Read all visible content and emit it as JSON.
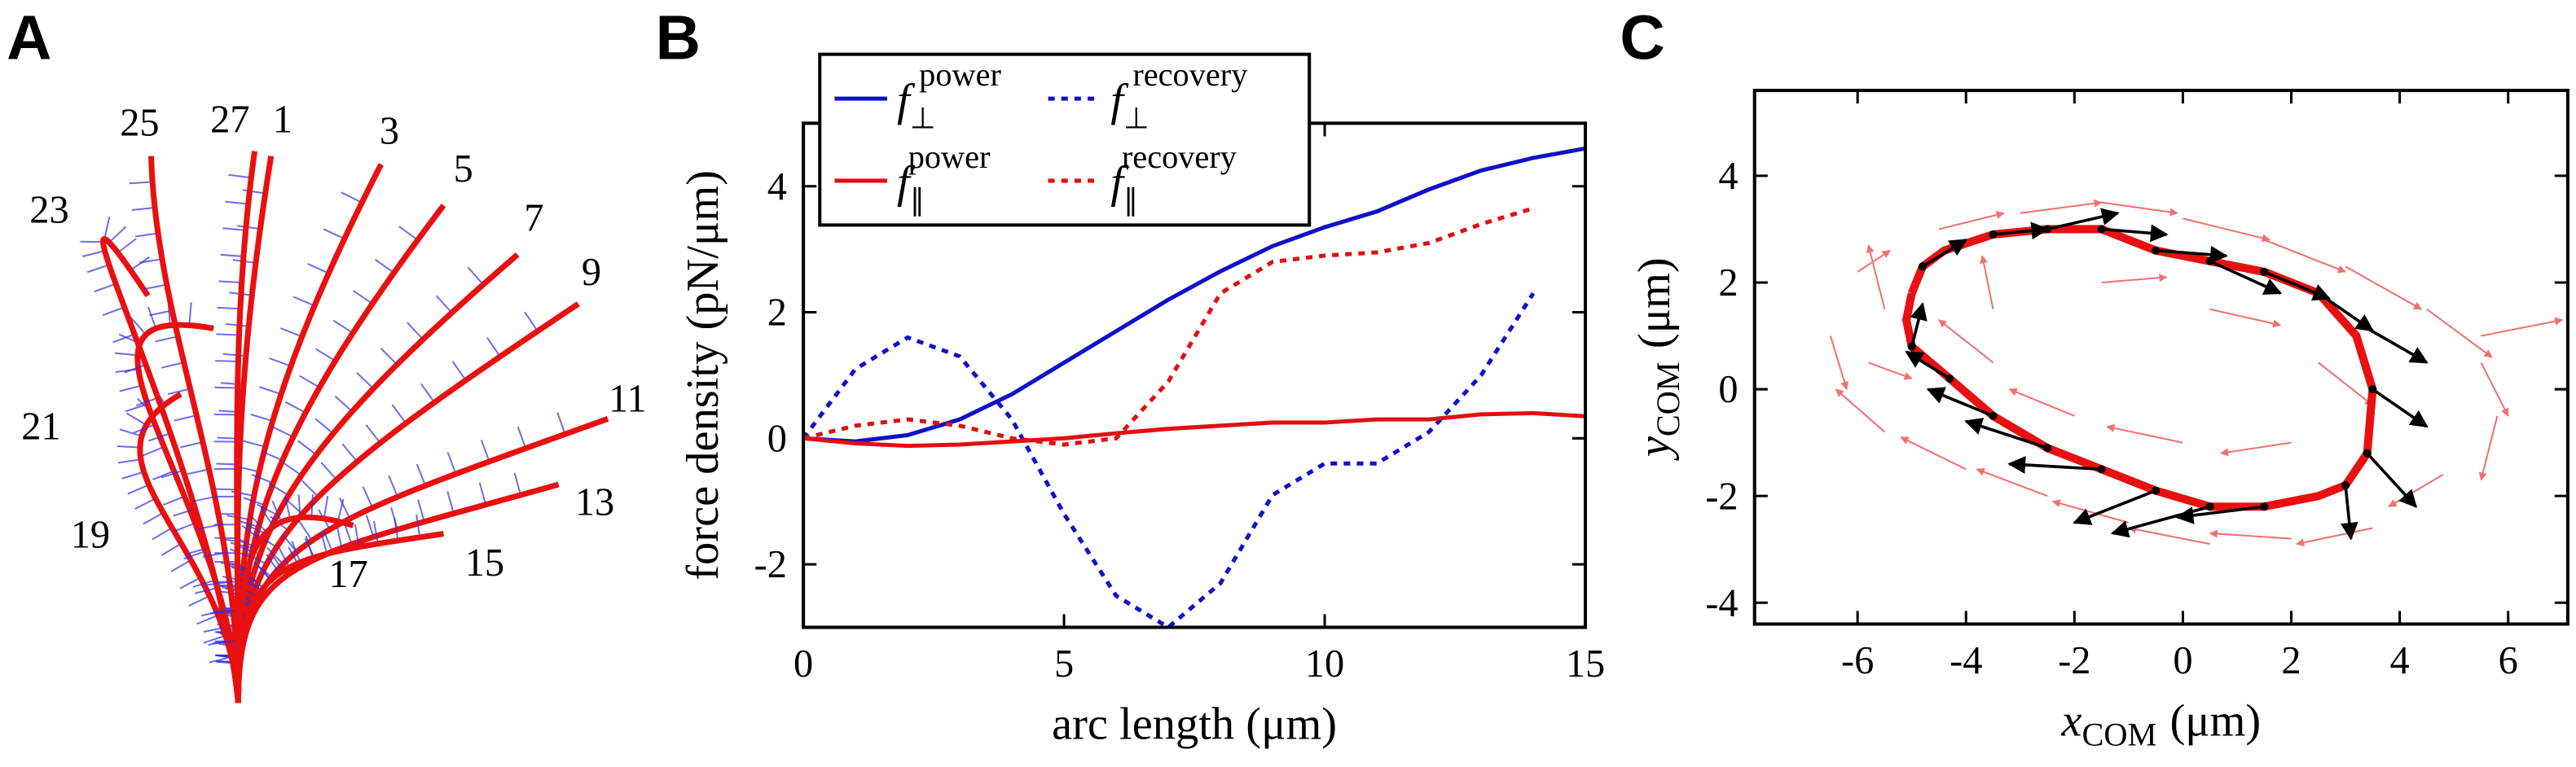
{
  "panel_a": {
    "letter": "A",
    "beat_labels": [
      "1",
      "3",
      "5",
      "7",
      "9",
      "11",
      "13",
      "15",
      "17",
      "19",
      "21",
      "23",
      "25",
      "27"
    ]
  },
  "chart_data": [
    {
      "type": "line",
      "letter": "B",
      "xlabel": "arc length (μm)",
      "ylabel": "force density (pN/μm)",
      "x": [
        0,
        1,
        2,
        3,
        4,
        5,
        6,
        7,
        8,
        9,
        10,
        11,
        12,
        13,
        14,
        15
      ],
      "series": [
        {
          "name": "f",
          "sub": "⊥",
          "sup": "power",
          "color": "#1010c8",
          "dash": "solid",
          "values": [
            0,
            -0.05,
            0.05,
            0.3,
            0.7,
            1.2,
            1.7,
            2.2,
            2.65,
            3.05,
            3.35,
            3.6,
            3.95,
            4.25,
            4.45,
            4.6
          ]
        },
        {
          "name": "f",
          "sub": "⊥",
          "sup": "recovery",
          "color": "#1010c8",
          "dash": "dotted",
          "values": [
            0,
            1.1,
            1.6,
            1.3,
            0.3,
            -1.2,
            -2.5,
            -3,
            -2.3,
            -0.9,
            -0.4,
            -0.4,
            0.1,
            1.0,
            2.3,
            null
          ]
        },
        {
          "name": "f",
          "sub": "∥",
          "sup": "power",
          "color": "#e01010",
          "dash": "solid",
          "values": [
            0,
            -0.08,
            -0.12,
            -0.1,
            -0.05,
            0,
            0.08,
            0.15,
            0.2,
            0.25,
            0.25,
            0.3,
            0.3,
            0.38,
            0.4,
            0.35
          ]
        },
        {
          "name": "f",
          "sub": "∥",
          "sup": "recovery",
          "color": "#e01010",
          "dash": "dotted",
          "values": [
            0,
            0.2,
            0.3,
            0.2,
            0,
            -0.1,
            0,
            0.9,
            2.3,
            2.8,
            2.9,
            2.95,
            3.1,
            3.4,
            3.65,
            null
          ]
        }
      ],
      "xlim": [
        0,
        15
      ],
      "xticks": [
        0,
        5,
        10,
        15
      ],
      "ylim": [
        -3,
        5
      ],
      "yticks": [
        -2,
        0,
        2,
        4
      ]
    },
    {
      "type": "quiver",
      "letter": "C",
      "xlabel": "x",
      "xlabel_sub": "COM",
      "xlabel_unit": "(μm)",
      "ylabel": "y",
      "ylabel_sub": "COM",
      "ylabel_unit": "(μm)",
      "xlim": [
        -7.9,
        7.1
      ],
      "xticks": [
        -6,
        -4,
        -2,
        0,
        2,
        4,
        6
      ],
      "ylim": [
        -4.4,
        5.6
      ],
      "yticks": [
        -4,
        -2,
        0,
        2,
        4
      ],
      "arrows": [
        {
          "color": "#f07070",
          "x": [
            -5.5,
            -6,
            -5.8,
            -4.5,
            -3,
            -1.5,
            0,
            1.5,
            3,
            4.5,
            5.5,
            5.8,
            4.8,
            3.5,
            2,
            0.5,
            -1,
            -2.5,
            -4,
            -5.5,
            -3.5,
            -2,
            0,
            2,
            2.5,
            0.5,
            -1.5,
            -3.5,
            5.5,
            -6.5
          ],
          "y": [
            1.5,
            2.2,
            0.5,
            3.0,
            3.3,
            3.5,
            3.2,
            2.8,
            2.3,
            1.5,
            0.5,
            -0.5,
            -1.6,
            -2.6,
            -2.8,
            -2.9,
            -2.5,
            -2.0,
            -1.5,
            -0.8,
            0.5,
            -0.5,
            -1.0,
            -1.0,
            0.5,
            1.5,
            2.0,
            1.5,
            1.0,
            1.0
          ],
          "u": [
            -0.3,
            0.6,
            0.8,
            1.2,
            1.5,
            1.4,
            1.6,
            1.5,
            1.4,
            1.2,
            0.5,
            -0.3,
            -1.0,
            -1.4,
            -1.5,
            -1.5,
            -1.4,
            -1.3,
            -1.2,
            -0.9,
            -1.0,
            -1.2,
            -1.4,
            -1.3,
            1.0,
            1.3,
            1.2,
            -0.2,
            1.5,
            0.3
          ],
          "v": [
            1.2,
            0.4,
            -0.3,
            0.3,
            0.2,
            -0.2,
            -0.4,
            -0.6,
            -0.8,
            -0.9,
            -1.0,
            -1.2,
            -0.6,
            -0.3,
            0.1,
            0.3,
            0.4,
            0.5,
            0.6,
            0.8,
            0.8,
            0.5,
            0.3,
            -0.2,
            -0.8,
            -0.3,
            0.1,
            1.0,
            0.3,
            -1.0
          ]
        },
        {
          "color": "#000000",
          "x": [
            -4.8,
            -3.5,
            -2.5,
            -1.5,
            -0.5,
            0.5,
            1.5,
            2.5,
            3.3,
            3.5,
            3.4,
            3.0,
            1.5,
            0.5,
            -0.5,
            -1.5,
            -2.5,
            -3.5,
            -4.3,
            -5
          ],
          "y": [
            2.3,
            2.9,
            3.0,
            3.0,
            2.6,
            2.4,
            2.2,
            1.8,
            1.2,
            0,
            -1.2,
            -1.8,
            -2.2,
            -2.2,
            -1.9,
            -1.5,
            -1.1,
            -0.5,
            0.2,
            0.8
          ],
          "u": [
            0.8,
            1.0,
            1.3,
            1.2,
            1.3,
            1.3,
            1.2,
            1.0,
            1.2,
            1.0,
            0.9,
            0.1,
            -1.6,
            -1.8,
            -1.5,
            -1.7,
            -1.5,
            -1.2,
            -0.8,
            0.2
          ],
          "v": [
            0.5,
            0.1,
            0.3,
            -0.1,
            -0.1,
            -0.6,
            -0.5,
            -0.7,
            -0.7,
            -0.7,
            -1.0,
            -1.0,
            -0.2,
            -0.5,
            -0.6,
            0.1,
            0.5,
            0.5,
            0.5,
            0.8
          ]
        }
      ],
      "trajectory": {
        "color": "#e81010",
        "x": [
          -5,
          -4.8,
          -4.4,
          -3.5,
          -2.5,
          -1.5,
          -0.5,
          0.5,
          1.5,
          2.5,
          3.2,
          3.5,
          3.4,
          3.0,
          2.5,
          1.5,
          0.5,
          -0.5,
          -1.5,
          -2.5,
          -3.5,
          -4.3,
          -5,
          -5.1,
          -5
        ],
        "y": [
          1.8,
          2.3,
          2.6,
          2.9,
          3.0,
          3.0,
          2.6,
          2.4,
          2.2,
          1.8,
          1.0,
          0.0,
          -1.2,
          -1.8,
          -2.0,
          -2.2,
          -2.2,
          -1.9,
          -1.5,
          -1.1,
          -0.5,
          0.2,
          0.8,
          1.3,
          1.8
        ]
      }
    }
  ]
}
